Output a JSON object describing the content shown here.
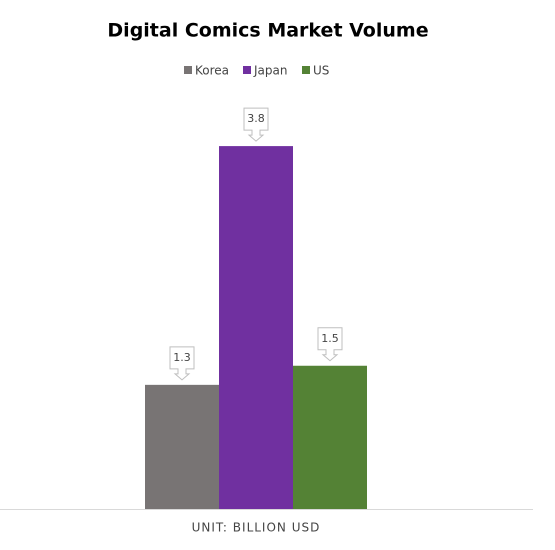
{
  "chart_data": {
    "type": "bar",
    "title": "Digital Comics Market Volume",
    "x_label": "UNIT: BILLION USD",
    "categories": [
      null
    ],
    "series": [
      {
        "name": "Korea",
        "color": "#787474",
        "values": [
          1.3
        ]
      },
      {
        "name": "Japan",
        "color": "#7030a0",
        "values": [
          3.8
        ]
      },
      {
        "name": "US",
        "color": "#548235",
        "values": [
          1.5
        ]
      }
    ],
    "ylim": [
      0,
      4
    ],
    "grid": false,
    "legend": "top"
  }
}
